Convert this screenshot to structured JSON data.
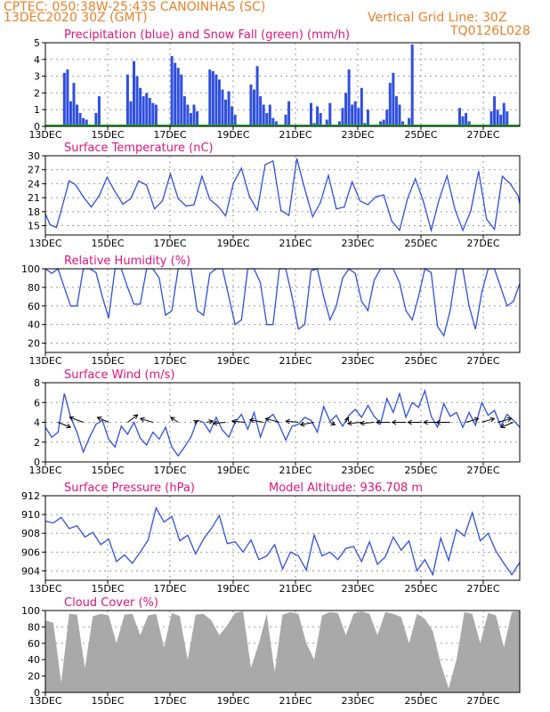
{
  "header": {
    "line1": "CPTEC:   050:38W-25:43S   CANOINHAS (SC)",
    "line2": "13DEC2020 30Z (GMT)",
    "grid_note": "Vertical Grid Line: 30Z",
    "run_code": "TQ0126L028"
  },
  "colors": {
    "header": "#e8822a",
    "title": "#e0157a",
    "blue": "#2f4fe0",
    "green": "#1aa51a",
    "cloud": "#a9a9a9",
    "arrow": "#000000"
  },
  "date_labels": [
    "13DEC",
    "15DEC",
    "17DEC",
    "19DEC",
    "21DEC",
    "23DEC",
    "25DEC",
    "27DEC"
  ],
  "chart_data": [
    {
      "type": "bar",
      "title": "Precipitation (blue) and Snow Fall (green) (mm/h)",
      "ylim": [
        0,
        5
      ],
      "yticks": [
        "0",
        "1",
        "2",
        "3",
        "4",
        "5"
      ],
      "xlim": [
        0,
        15
      ],
      "series": [
        {
          "name": "Precipitation",
          "color": "#2f4fe0",
          "x": [
            0.6,
            0.7,
            0.8,
            0.9,
            1.0,
            1.1,
            1.2,
            1.3,
            1.6,
            1.7,
            2.6,
            2.7,
            2.8,
            2.9,
            3.0,
            3.1,
            3.2,
            3.3,
            3.4,
            3.5,
            4.0,
            4.1,
            4.2,
            4.3,
            4.4,
            4.5,
            4.6,
            4.7,
            4.8,
            5.2,
            5.3,
            5.4,
            5.5,
            5.6,
            5.7,
            5.8,
            5.9,
            6.0,
            6.5,
            6.6,
            6.7,
            6.8,
            6.9,
            7.0,
            7.1,
            7.2,
            7.3,
            7.6,
            7.7,
            8.4,
            8.5,
            8.6,
            8.7,
            8.9,
            9.0,
            9.3,
            9.4,
            9.5,
            9.6,
            9.7,
            9.8,
            9.9,
            10.0,
            10.1,
            10.2,
            10.6,
            10.7,
            10.8,
            10.9,
            11.0,
            11.1,
            11.2,
            11.3,
            11.5,
            11.6,
            13.1,
            13.2,
            13.3,
            13.4,
            14.1,
            14.2,
            14.3,
            14.4,
            14.5,
            14.6
          ],
          "values": [
            3.2,
            3.4,
            1.5,
            2.6,
            1.3,
            0.8,
            0.5,
            0.4,
            0.8,
            1.8,
            3.1,
            1.5,
            3.9,
            3.0,
            2.3,
            1.8,
            2.0,
            1.7,
            1.4,
            1.3,
            4.2,
            3.8,
            3.5,
            3.1,
            1.8,
            1.3,
            0.8,
            1.3,
            0.9,
            3.4,
            3.3,
            3.1,
            2.8,
            2.2,
            1.6,
            2.1,
            1.2,
            0.7,
            2.5,
            2.2,
            3.6,
            1.8,
            1.3,
            0.8,
            1.3,
            0.5,
            0.3,
            0.7,
            1.5,
            1.4,
            0.2,
            1.2,
            0.8,
            0.4,
            1.4,
            0.3,
            1.1,
            2.0,
            3.4,
            1.3,
            1.5,
            1.1,
            2.3,
            0.2,
            1.0,
            0.3,
            0.4,
            1.0,
            2.6,
            3.2,
            1.8,
            1.3,
            0.3,
            0.5,
            4.9,
            1.1,
            0.6,
            0.8,
            0.3,
            0.9,
            1.8,
            1.0,
            0.7,
            1.4,
            0.9
          ]
        },
        {
          "name": "Snow Fall",
          "color": "#1aa51a",
          "x": [],
          "values": []
        }
      ]
    },
    {
      "type": "line",
      "title": "Surface Temperature (nC)",
      "ylim": [
        13,
        30
      ],
      "yticks": [
        "15",
        "18",
        "21",
        "24",
        "27",
        "30"
      ],
      "xlim": [
        0,
        15
      ],
      "series": [
        {
          "name": "Temperature",
          "color": "#2f4fe0",
          "x": [
            0,
            0.15,
            0.35,
            0.55,
            0.75,
            0.95,
            1.2,
            1.45,
            1.7,
            1.95,
            2.2,
            2.45,
            2.7,
            2.95,
            3.2,
            3.45,
            3.7,
            3.95,
            4.2,
            4.45,
            4.7,
            4.95,
            5.2,
            5.45,
            5.7,
            5.95,
            6.2,
            6.45,
            6.7,
            6.95,
            7.2,
            7.45,
            7.7,
            7.95,
            8.2,
            8.45,
            8.7,
            8.95,
            9.2,
            9.45,
            9.7,
            9.95,
            10.2,
            10.45,
            10.7,
            10.95,
            11.2,
            11.45,
            11.7,
            11.95,
            12.2,
            12.45,
            12.7,
            12.95,
            13.2,
            13.45,
            13.7,
            13.95,
            14.2,
            14.45,
            14.7,
            14.95,
            15.0
          ],
          "values": [
            17.5,
            15.2,
            14.6,
            19.5,
            24.6,
            23.8,
            21.2,
            19.0,
            21.4,
            25.4,
            22.3,
            19.6,
            20.8,
            24.6,
            23.7,
            18.6,
            20.3,
            26.1,
            20.8,
            19.2,
            19.5,
            25.6,
            20.6,
            19.2,
            17.1,
            24.2,
            27.3,
            21.3,
            18.3,
            28.1,
            28.9,
            18.3,
            17.2,
            29.4,
            22.9,
            16.9,
            20.0,
            25.8,
            18.6,
            19.0,
            24.4,
            20.3,
            19.5,
            21.2,
            21.6,
            16.0,
            14.0,
            20.8,
            25.1,
            20.3,
            14.0,
            20.6,
            25.7,
            18.5,
            14.0,
            18.1,
            26.7,
            16.4,
            14.2,
            25.6,
            24.0,
            21.4,
            19.6
          ]
        }
      ]
    },
    {
      "type": "line",
      "title": "Relative Humidity (%)",
      "ylim": [
        10,
        100
      ],
      "yticks": [
        "20",
        "40",
        "60",
        "80",
        "100"
      ],
      "xlim": [
        0,
        15
      ],
      "series": [
        {
          "name": "Relative Humidity",
          "color": "#2f4fe0",
          "x": [
            0,
            0.2,
            0.4,
            0.6,
            0.8,
            1.0,
            1.2,
            1.4,
            1.6,
            1.8,
            2.0,
            2.2,
            2.4,
            2.6,
            2.8,
            3.0,
            3.2,
            3.4,
            3.6,
            3.8,
            4.0,
            4.2,
            4.4,
            4.6,
            4.8,
            5.0,
            5.2,
            5.4,
            5.6,
            5.8,
            6.0,
            6.2,
            6.4,
            6.6,
            6.8,
            7.0,
            7.2,
            7.4,
            7.6,
            7.8,
            8.0,
            8.2,
            8.4,
            8.6,
            8.8,
            9.0,
            9.2,
            9.4,
            9.6,
            9.8,
            10.0,
            10.2,
            10.4,
            10.6,
            10.8,
            11.0,
            11.2,
            11.4,
            11.6,
            11.8,
            12.0,
            12.2,
            12.4,
            12.6,
            12.8,
            13.0,
            13.2,
            13.4,
            13.6,
            13.8,
            14.0,
            14.2,
            14.4,
            14.6,
            14.8,
            15.0
          ],
          "values": [
            100,
            95,
            100,
            80,
            60,
            60,
            100,
            100,
            96,
            70,
            47,
            100,
            100,
            80,
            62,
            62,
            100,
            100,
            90,
            50,
            55,
            100,
            100,
            100,
            55,
            50,
            95,
            100,
            100,
            70,
            40,
            45,
            100,
            100,
            85,
            40,
            40,
            100,
            100,
            70,
            35,
            40,
            98,
            100,
            70,
            45,
            60,
            90,
            100,
            95,
            65,
            55,
            88,
            100,
            100,
            100,
            85,
            55,
            45,
            70,
            100,
            96,
            38,
            28,
            55,
            100,
            100,
            60,
            35,
            75,
            100,
            100,
            80,
            60,
            65,
            84
          ]
        }
      ]
    },
    {
      "type": "line",
      "title": "Surface Wind (m/s)",
      "ylim": [
        0,
        8
      ],
      "yticks": [
        "0",
        "2",
        "4",
        "6",
        "8"
      ],
      "xlim": [
        0,
        15
      ],
      "series": [
        {
          "name": "Wind Speed",
          "color": "#2f4fe0",
          "x": [
            0,
            0.2,
            0.4,
            0.6,
            0.8,
            1.0,
            1.2,
            1.4,
            1.6,
            1.8,
            2.0,
            2.2,
            2.4,
            2.6,
            2.8,
            3.0,
            3.2,
            3.4,
            3.6,
            3.8,
            4.0,
            4.2,
            4.4,
            4.6,
            4.8,
            5.0,
            5.2,
            5.4,
            5.6,
            5.8,
            6.0,
            6.2,
            6.4,
            6.6,
            6.8,
            7.0,
            7.2,
            7.4,
            7.6,
            7.8,
            8.0,
            8.2,
            8.4,
            8.6,
            8.8,
            9.0,
            9.2,
            9.4,
            9.6,
            9.8,
            10.0,
            10.2,
            10.4,
            10.6,
            10.8,
            11.0,
            11.2,
            11.4,
            11.6,
            11.8,
            12.0,
            12.2,
            12.4,
            12.6,
            12.8,
            13.0,
            13.2,
            13.4,
            13.6,
            13.8,
            14.0,
            14.2,
            14.4,
            14.6,
            14.8,
            15.0
          ],
          "values": [
            3.5,
            2.5,
            3.0,
            6.9,
            4.5,
            3.0,
            1.0,
            2.5,
            3.8,
            4.2,
            2.3,
            1.5,
            3.6,
            2.8,
            4.0,
            2.4,
            1.7,
            3.0,
            2.3,
            3.5,
            1.5,
            0.6,
            1.5,
            2.5,
            4.2,
            4.0,
            3.0,
            4.5,
            3.2,
            2.5,
            4.0,
            4.8,
            3.3,
            5.0,
            2.5,
            4.3,
            4.8,
            3.7,
            2.2,
            3.6,
            3.8,
            4.5,
            4.2,
            3.0,
            5.6,
            4.1,
            4.7,
            3.6,
            4.7,
            5.3,
            4.5,
            5.7,
            4.6,
            3.9,
            6.4,
            5.0,
            6.9,
            4.5,
            6.0,
            5.5,
            7.2,
            4.6,
            3.5,
            5.9,
            4.6,
            5.0,
            3.5,
            5.0,
            3.7,
            6.0,
            4.7,
            5.2,
            3.6,
            4.8,
            4.2,
            3.5
          ]
        }
      ],
      "wind_vectors": {
        "x": [
          0.4,
          1.2,
          2.0,
          2.6,
          3.4,
          4.2,
          4.7,
          5.1,
          5.7,
          6.3,
          6.9,
          7.4,
          8.0,
          8.5,
          9.0,
          9.5,
          10.0,
          10.4,
          10.9,
          11.4,
          11.9,
          12.4,
          12.8,
          13.3,
          13.8,
          14.3,
          14.8
        ],
        "u": [
          1.0,
          -1.1,
          -0.9,
          0.8,
          -1.0,
          -0.6,
          0.3,
          0.5,
          -1.0,
          -1.0,
          -1.1,
          -1.1,
          -1.0,
          -1.1,
          0.4,
          0.2,
          -1.1,
          -1.1,
          -1.1,
          -1.1,
          -1.1,
          -1.1,
          -1.1,
          1.0,
          1.0,
          1.1,
          -1.0
        ],
        "v": [
          -0.4,
          0.4,
          0.4,
          0.6,
          0.3,
          0.4,
          0.1,
          0.1,
          -0.1,
          0.1,
          0.2,
          0.3,
          0.1,
          -0.2,
          -0.2,
          0.4,
          -0.1,
          -0.1,
          0.0,
          0.0,
          0.0,
          0.0,
          0.0,
          0.3,
          0.3,
          0.3,
          -0.4
        ]
      }
    },
    {
      "type": "line",
      "title": "Surface Pressure (hPa)",
      "subtitle": "Model Altitude: 936.708  m",
      "ylim": [
        903,
        912
      ],
      "yticks": [
        "904",
        "906",
        "908",
        "910",
        "912"
      ],
      "xlim": [
        0,
        15
      ],
      "series": [
        {
          "name": "Surface Pressure",
          "color": "#2f4fe0",
          "x": [
            0,
            0.25,
            0.5,
            0.75,
            1.0,
            1.25,
            1.5,
            1.75,
            2.0,
            2.25,
            2.5,
            2.75,
            3.0,
            3.25,
            3.5,
            3.75,
            4.0,
            4.25,
            4.5,
            4.75,
            5.0,
            5.25,
            5.5,
            5.75,
            6.0,
            6.25,
            6.5,
            6.75,
            7.0,
            7.25,
            7.5,
            7.75,
            8.0,
            8.25,
            8.5,
            8.75,
            9.0,
            9.25,
            9.5,
            9.75,
            10.0,
            10.25,
            10.5,
            10.75,
            11.0,
            11.25,
            11.5,
            11.75,
            12.0,
            12.25,
            12.5,
            12.75,
            13.0,
            13.25,
            13.5,
            13.75,
            14.0,
            14.25,
            14.5,
            14.75,
            15.0
          ],
          "values": [
            909.3,
            909.1,
            909.7,
            908.5,
            908.8,
            907.6,
            908.1,
            906.8,
            907.4,
            905.0,
            905.7,
            904.8,
            906.0,
            907.3,
            910.7,
            909.2,
            909.8,
            907.2,
            907.8,
            905.8,
            907.4,
            908.5,
            909.9,
            906.9,
            907.1,
            906.0,
            907.3,
            905.2,
            905.6,
            906.8,
            904.2,
            906.0,
            905.6,
            904.1,
            907.8,
            905.6,
            906.0,
            905.2,
            906.4,
            906.6,
            905.0,
            907.1,
            904.7,
            905.5,
            907.6,
            906.2,
            907.2,
            904.0,
            905.2,
            903.6,
            907.5,
            905.1,
            908.4,
            907.7,
            910.2,
            907.2,
            908.0,
            906.1,
            904.8,
            903.6,
            904.9
          ]
        }
      ]
    },
    {
      "type": "area",
      "title": "Cloud Cover (%)",
      "ylim": [
        0,
        100
      ],
      "yticks": [
        "0",
        "20",
        "40",
        "60",
        "80",
        "100"
      ],
      "xlim": [
        0,
        15
      ],
      "series": [
        {
          "name": "Cloud Cover",
          "color": "#a9a9a9",
          "x": [
            0,
            0.25,
            0.5,
            0.75,
            1.0,
            1.25,
            1.5,
            1.75,
            2.0,
            2.25,
            2.5,
            2.75,
            3.0,
            3.25,
            3.5,
            3.75,
            4.0,
            4.25,
            4.5,
            4.75,
            5.0,
            5.25,
            5.5,
            5.75,
            6.0,
            6.25,
            6.5,
            6.75,
            7.0,
            7.25,
            7.5,
            7.75,
            8.0,
            8.25,
            8.5,
            8.75,
            9.0,
            9.25,
            9.5,
            9.75,
            10.0,
            10.25,
            10.5,
            10.75,
            11.0,
            11.25,
            11.5,
            11.75,
            12.0,
            12.25,
            12.5,
            12.75,
            13.0,
            13.25,
            13.5,
            13.75,
            14.0,
            14.25,
            14.5,
            14.75,
            15.0
          ],
          "values": [
            88,
            85,
            12,
            96,
            95,
            30,
            93,
            96,
            94,
            60,
            95,
            96,
            70,
            94,
            96,
            55,
            97,
            93,
            40,
            95,
            96,
            88,
            70,
            82,
            97,
            99,
            30,
            60,
            96,
            25,
            95,
            98,
            96,
            60,
            40,
            94,
            98,
            97,
            70,
            96,
            99,
            96,
            70,
            98,
            96,
            92,
            60,
            96,
            90,
            75,
            35,
            5,
            40,
            98,
            96,
            60,
            97,
            94,
            55,
            98,
            99
          ]
        }
      ]
    }
  ]
}
